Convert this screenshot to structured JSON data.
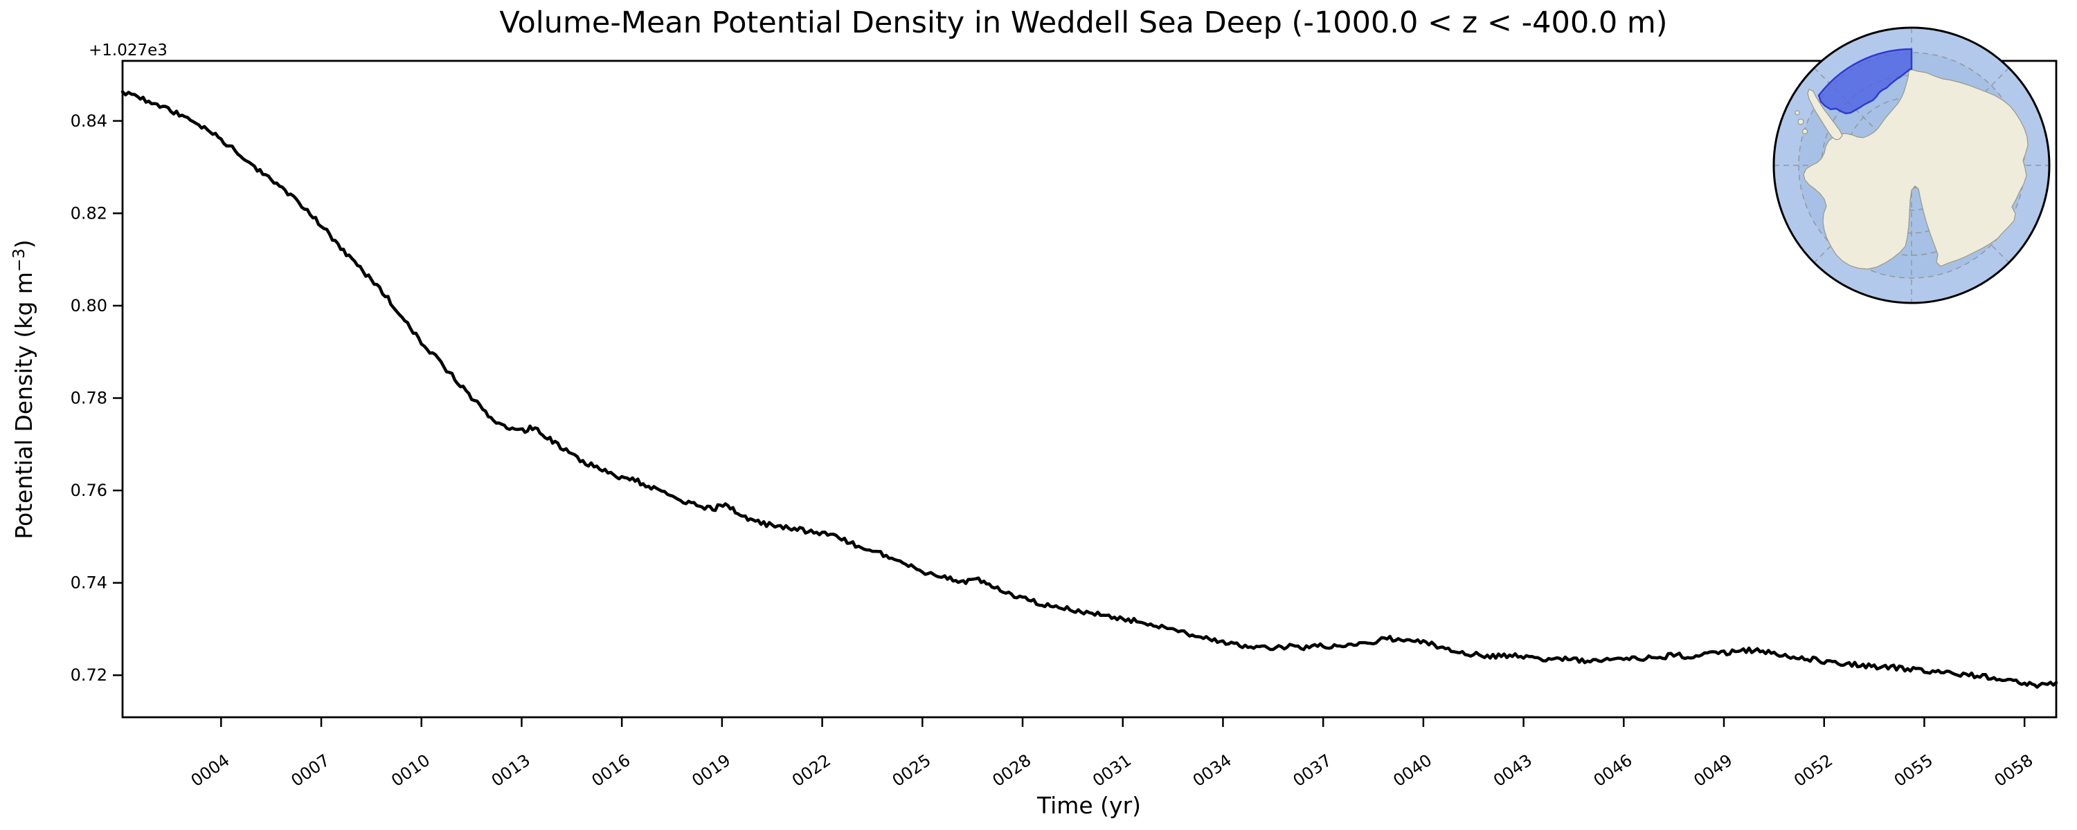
{
  "title": "Volume-Mean Potential Density in Weddell Sea Deep (-1000.0 < z < -400.0 m)",
  "axes": {
    "xlabel": "Time (yr)",
    "ylabel_prefix": "Potential Density (kg m",
    "ylabel_sup": "−3",
    "ylabel_suffix": ")",
    "y_offset_text": "+1.027e3"
  },
  "chart_data": {
    "type": "line",
    "title": "Volume-Mean Potential Density in Weddell Sea Deep (-1000.0 < z < -400.0 m)",
    "xlabel": "Time (yr)",
    "ylabel": "Potential Density (kg m^-3)",
    "y_offset": "+1.027e3",
    "xlim": [
      1.05,
      58.95
    ],
    "ylim": [
      0.7109,
      0.853
    ],
    "grid": false,
    "legend": "none",
    "line_color": "#000000",
    "x_ticks": [
      4,
      7,
      10,
      13,
      16,
      19,
      22,
      25,
      28,
      31,
      34,
      37,
      40,
      43,
      46,
      49,
      52,
      55,
      58
    ],
    "x_tick_labels": [
      "0004",
      "0007",
      "0010",
      "0013",
      "0016",
      "0019",
      "0022",
      "0025",
      "0028",
      "0031",
      "0034",
      "0037",
      "0040",
      "0043",
      "0046",
      "0049",
      "0052",
      "0055",
      "0058"
    ],
    "y_ticks": [
      0.72,
      0.74,
      0.76,
      0.78,
      0.8,
      0.82,
      0.84
    ],
    "y_tick_labels": [
      "0.72",
      "0.74",
      "0.76",
      "0.78",
      "0.80",
      "0.82",
      "0.84"
    ],
    "series": [
      {
        "name": "volume-mean potential density",
        "points": [
          [
            1.05,
            0.8463
          ],
          [
            1.5,
            0.8452
          ],
          [
            2,
            0.8437
          ],
          [
            2.5,
            0.8422
          ],
          [
            3,
            0.8407
          ],
          [
            3.5,
            0.8386
          ],
          [
            4,
            0.836
          ],
          [
            4.5,
            0.8332
          ],
          [
            5,
            0.83
          ],
          [
            5.5,
            0.8272
          ],
          [
            6,
            0.8243
          ],
          [
            6.5,
            0.8211
          ],
          [
            7,
            0.8174
          ],
          [
            7.5,
            0.8133
          ],
          [
            8,
            0.8092
          ],
          [
            8.5,
            0.8055
          ],
          [
            9,
            0.8016
          ],
          [
            9.5,
            0.7969
          ],
          [
            10,
            0.7922
          ],
          [
            10.5,
            0.7882
          ],
          [
            11,
            0.7842
          ],
          [
            11.5,
            0.7801
          ],
          [
            12,
            0.7762
          ],
          [
            12.4,
            0.7744
          ],
          [
            12.8,
            0.7733
          ],
          [
            13.1,
            0.7728
          ],
          [
            13.4,
            0.774
          ],
          [
            13.7,
            0.7718
          ],
          [
            14,
            0.7702
          ],
          [
            14.5,
            0.7678
          ],
          [
            15,
            0.7657
          ],
          [
            15.5,
            0.7641
          ],
          [
            16,
            0.7626
          ],
          [
            16.4,
            0.7622
          ],
          [
            16.8,
            0.761
          ],
          [
            17.2,
            0.7597
          ],
          [
            17.6,
            0.7585
          ],
          [
            18,
            0.7572
          ],
          [
            18.4,
            0.7564
          ],
          [
            18.8,
            0.7562
          ],
          [
            19.1,
            0.7572
          ],
          [
            19.4,
            0.7556
          ],
          [
            19.7,
            0.7542
          ],
          [
            20,
            0.7532
          ],
          [
            20.5,
            0.7524
          ],
          [
            21,
            0.7518
          ],
          [
            21.5,
            0.7513
          ],
          [
            22,
            0.7509
          ],
          [
            22.5,
            0.7497
          ],
          [
            23,
            0.7482
          ],
          [
            23.5,
            0.7469
          ],
          [
            24,
            0.7456
          ],
          [
            24.5,
            0.744
          ],
          [
            25,
            0.7426
          ],
          [
            25.5,
            0.7413
          ],
          [
            26,
            0.7406
          ],
          [
            26.3,
            0.7404
          ],
          [
            26.6,
            0.7409
          ],
          [
            27,
            0.7393
          ],
          [
            27.5,
            0.7381
          ],
          [
            28,
            0.7366
          ],
          [
            28.5,
            0.7356
          ],
          [
            29,
            0.7348
          ],
          [
            29.5,
            0.7341
          ],
          [
            30,
            0.7336
          ],
          [
            30.5,
            0.7329
          ],
          [
            31,
            0.7323
          ],
          [
            31.5,
            0.7316
          ],
          [
            32,
            0.7306
          ],
          [
            32.5,
            0.7298
          ],
          [
            33,
            0.7289
          ],
          [
            33.5,
            0.7281
          ],
          [
            34,
            0.7271
          ],
          [
            34.5,
            0.7264
          ],
          [
            35,
            0.7261
          ],
          [
            35.5,
            0.7258
          ],
          [
            36,
            0.7263
          ],
          [
            36.5,
            0.7259
          ],
          [
            37,
            0.7264
          ],
          [
            37.5,
            0.7261
          ],
          [
            38,
            0.7268
          ],
          [
            38.5,
            0.7273
          ],
          [
            39,
            0.7279
          ],
          [
            39.5,
            0.7275
          ],
          [
            40,
            0.7271
          ],
          [
            40.5,
            0.7261
          ],
          [
            41,
            0.7251
          ],
          [
            41.5,
            0.7245
          ],
          [
            42,
            0.7241
          ],
          [
            42.5,
            0.7243
          ],
          [
            43,
            0.7239
          ],
          [
            43.5,
            0.7235
          ],
          [
            44,
            0.7237
          ],
          [
            44.5,
            0.7233
          ],
          [
            45,
            0.7231
          ],
          [
            45.5,
            0.7235
          ],
          [
            46,
            0.7237
          ],
          [
            46.5,
            0.7234
          ],
          [
            47,
            0.7239
          ],
          [
            47.5,
            0.7243
          ],
          [
            48,
            0.7241
          ],
          [
            48.5,
            0.7246
          ],
          [
            49,
            0.7249
          ],
          [
            49.5,
            0.7253
          ],
          [
            50,
            0.7255
          ],
          [
            50.5,
            0.7248
          ],
          [
            51,
            0.7242
          ],
          [
            51.5,
            0.7236
          ],
          [
            52,
            0.7231
          ],
          [
            52.5,
            0.7226
          ],
          [
            53,
            0.7223
          ],
          [
            53.5,
            0.7219
          ],
          [
            54,
            0.7217
          ],
          [
            54.5,
            0.7213
          ],
          [
            55,
            0.7209
          ],
          [
            55.5,
            0.7205
          ],
          [
            56,
            0.7202
          ],
          [
            56.5,
            0.7199
          ],
          [
            57,
            0.7196
          ],
          [
            57.5,
            0.7191
          ],
          [
            58,
            0.7184
          ],
          [
            58.3,
            0.7179
          ],
          [
            58.6,
            0.7179
          ],
          [
            58.95,
            0.7184
          ]
        ]
      }
    ]
  },
  "inset_map": {
    "projection": "south-polar-stereographic",
    "highlighted_region": "Weddell Sea sector",
    "colors": {
      "ocean": "#a6c1e5",
      "ocean_outer_ring": "#b2c9eb",
      "land": "#efecdb",
      "coastline": "#9a9884",
      "graticule": "#8f8f8f",
      "region_fill": "#4f62e3",
      "region_border": "#2d3bd1",
      "rim": "#000000"
    }
  }
}
